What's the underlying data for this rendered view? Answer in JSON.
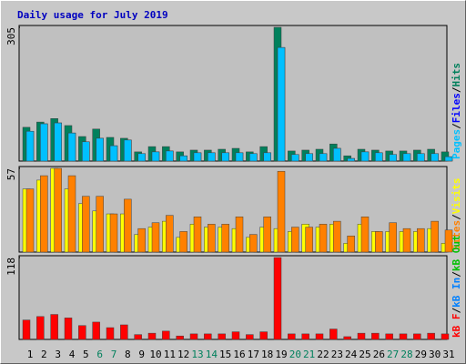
{
  "chart_data": [
    {
      "type": "bar",
      "title": "Daily usage for July 2019",
      "ylim": [
        0,
        305
      ],
      "yticks": [
        305
      ],
      "legend_separator": "/",
      "series": [
        {
          "name": "Hits",
          "color": "#00805c",
          "values": [
            77,
            89,
            97,
            81,
            56,
            73,
            54,
            52,
            21,
            33,
            33,
            21,
            25,
            25,
            27,
            29,
            21,
            33,
            305,
            23,
            25,
            27,
            39,
            12,
            27,
            25,
            23,
            23,
            25,
            27,
            21
          ]
        },
        {
          "name": "Files",
          "color": "#0000ff",
          "values": [
            68,
            85,
            87,
            64,
            44,
            52,
            35,
            48,
            17,
            21,
            23,
            12,
            19,
            19,
            19,
            19,
            17,
            19,
            259,
            15,
            17,
            17,
            29,
            6,
            21,
            19,
            15,
            17,
            17,
            17,
            10
          ]
        },
        {
          "name": "Pages",
          "color": "#00c0ff",
          "values": [
            68,
            85,
            87,
            64,
            44,
            52,
            35,
            48,
            17,
            21,
            23,
            12,
            19,
            19,
            19,
            19,
            17,
            19,
            259,
            15,
            17,
            17,
            29,
            6,
            21,
            19,
            15,
            17,
            17,
            17,
            10
          ]
        }
      ]
    },
    {
      "type": "bar",
      "ylim": [
        0,
        57
      ],
      "yticks": [
        57
      ],
      "legend_separator": "/",
      "series": [
        {
          "name": "Visits",
          "color": "#ffff00",
          "values": [
            43,
            49,
            57,
            43,
            33,
            28,
            26,
            26,
            12,
            17,
            21,
            10,
            19,
            17,
            17,
            16,
            10,
            17,
            16,
            14,
            19,
            17,
            19,
            6,
            19,
            14,
            14,
            14,
            14,
            16,
            6
          ]
        },
        {
          "name": "Sites",
          "color": "#ff8000",
          "values": [
            43,
            52,
            57,
            52,
            38,
            38,
            26,
            36,
            16,
            20,
            25,
            14,
            24,
            19,
            19,
            24,
            12,
            24,
            55,
            17,
            17,
            19,
            21,
            11,
            24,
            14,
            20,
            16,
            16,
            21,
            15
          ]
        }
      ]
    },
    {
      "type": "bar",
      "ylim": [
        0,
        118
      ],
      "yticks": [
        118
      ],
      "legend_separator": "/",
      "categories": [
        "1",
        "2",
        "3",
        "4",
        "5",
        "6",
        "7",
        "8",
        "9",
        "10",
        "11",
        "12",
        "13",
        "14",
        "15",
        "16",
        "17",
        "18",
        "19",
        "20",
        "21",
        "22",
        "23",
        "24",
        "25",
        "26",
        "27",
        "28",
        "29",
        "30",
        "31"
      ],
      "category_colors": [
        "#000000",
        "#000000",
        "#000000",
        "#000000",
        "#000000",
        "#00805c",
        "#00805c",
        "#000000",
        "#000000",
        "#000000",
        "#000000",
        "#000000",
        "#00805c",
        "#00805c",
        "#000000",
        "#000000",
        "#000000",
        "#000000",
        "#000000",
        "#00805c",
        "#00805c",
        "#000000",
        "#000000",
        "#000000",
        "#000000",
        "#000000",
        "#00805c",
        "#00805c",
        "#000000",
        "#000000",
        "#000000"
      ],
      "series": [
        {
          "name": "kB Out",
          "color": "#00c000",
          "values": [
            0,
            0,
            0,
            0,
            0,
            0,
            0,
            0,
            0,
            0,
            0,
            0,
            0,
            0,
            0,
            0,
            0,
            0,
            0,
            0,
            0,
            0,
            0,
            0,
            0,
            0,
            0,
            0,
            0,
            0,
            0
          ]
        },
        {
          "name": "kB In",
          "color": "#0080ff",
          "values": [
            0,
            0,
            0,
            0,
            0,
            0,
            0,
            0,
            0,
            0,
            0,
            0,
            0,
            0,
            0,
            0,
            0,
            0,
            0,
            0,
            0,
            0,
            0,
            0,
            0,
            0,
            0,
            0,
            0,
            0,
            0
          ]
        },
        {
          "name": "kB F",
          "color": "#ff0000",
          "values": [
            28,
            33,
            36,
            31,
            20,
            25,
            17,
            21,
            7,
            9,
            12,
            5,
            8,
            8,
            8,
            11,
            7,
            11,
            118,
            8,
            8,
            8,
            15,
            4,
            9,
            9,
            8,
            8,
            8,
            9,
            8
          ]
        }
      ]
    }
  ]
}
